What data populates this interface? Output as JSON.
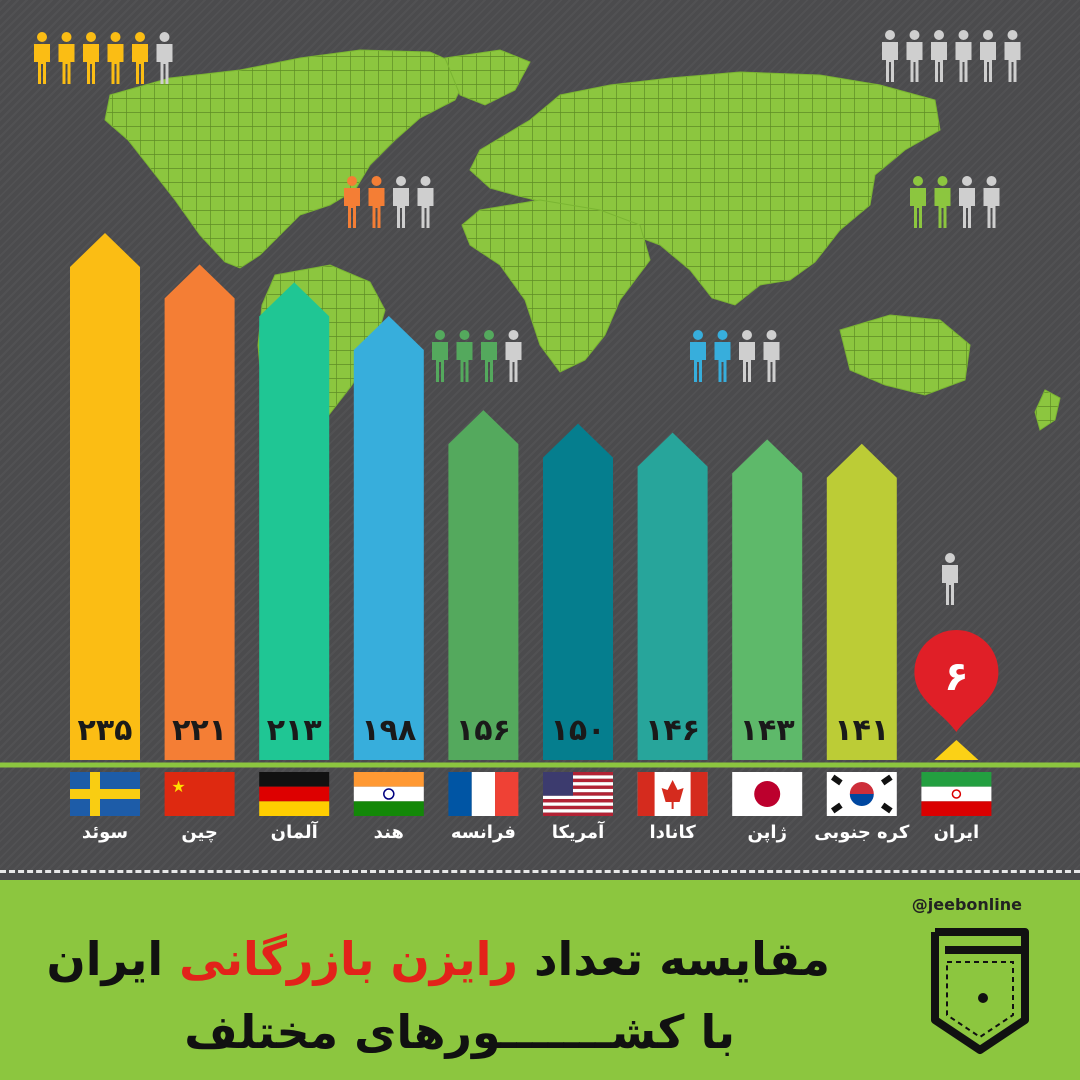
{
  "chart_data": {
    "type": "bar",
    "categories": [
      "سوئد",
      "چین",
      "آلمان",
      "هند",
      "فرانسه",
      "آمریکا",
      "کانادا",
      "ژاپن",
      "کره جنوبی",
      "ایران"
    ],
    "values": [
      235,
      221,
      213,
      198,
      156,
      150,
      146,
      143,
      141,
      6
    ],
    "value_labels": [
      "۲۳۵",
      "۲۲۱",
      "۲۱۳",
      "۱۹۸",
      "۱۵۶",
      "۱۵۰",
      "۱۴۶",
      "۱۴۳",
      "۱۴۱",
      "۶"
    ],
    "bar_colors": [
      "#fbbd14",
      "#f47e35",
      "#1fc694",
      "#37aedc",
      "#54a95d",
      "#057e8e",
      "#27a59b",
      "#5eb96a",
      "#bccc36",
      "#e01f27"
    ],
    "ylim": [
      0,
      240
    ],
    "title": "مقایسه تعداد رایزن بازرگانی ایران با کشورهای مختلف"
  },
  "flags": [
    "sweden-flag",
    "china-flag",
    "germany-flag",
    "india-flag",
    "france-flag",
    "usa-flag",
    "canada-flag",
    "japan-flag",
    "south-korea-flag",
    "iran-flag"
  ],
  "people_groups": [
    {
      "color": "#fbbd14",
      "filled": 5,
      "total": 6
    },
    {
      "color": "#f47e35",
      "filled": 2,
      "total": 4
    },
    {
      "color": "#54a95d",
      "filled": 3,
      "total": 4
    },
    {
      "color": "#37aedc",
      "filled": 2,
      "total": 4
    },
    {
      "color": "#8cc63f",
      "filled": 2,
      "total": 4
    },
    {
      "color": "#cfcfcf",
      "filled": 0,
      "total": 6
    },
    {
      "color": "#cfcfcf",
      "filled": 0,
      "total": 1
    }
  ],
  "colors": {
    "map": "#8cc63f",
    "background": "#4b4b4d",
    "footer": "#8cc63f",
    "person_gray": "#cfcfcf",
    "accent_red": "#e2231a"
  },
  "footer": {
    "handle": "@jeebonline",
    "title_part1": "مقایسه تعداد ",
    "title_accent": "رایزن بازرگانی",
    "title_part2": " ایران",
    "subtitle": "با کشـــــــورهای مختلف"
  }
}
